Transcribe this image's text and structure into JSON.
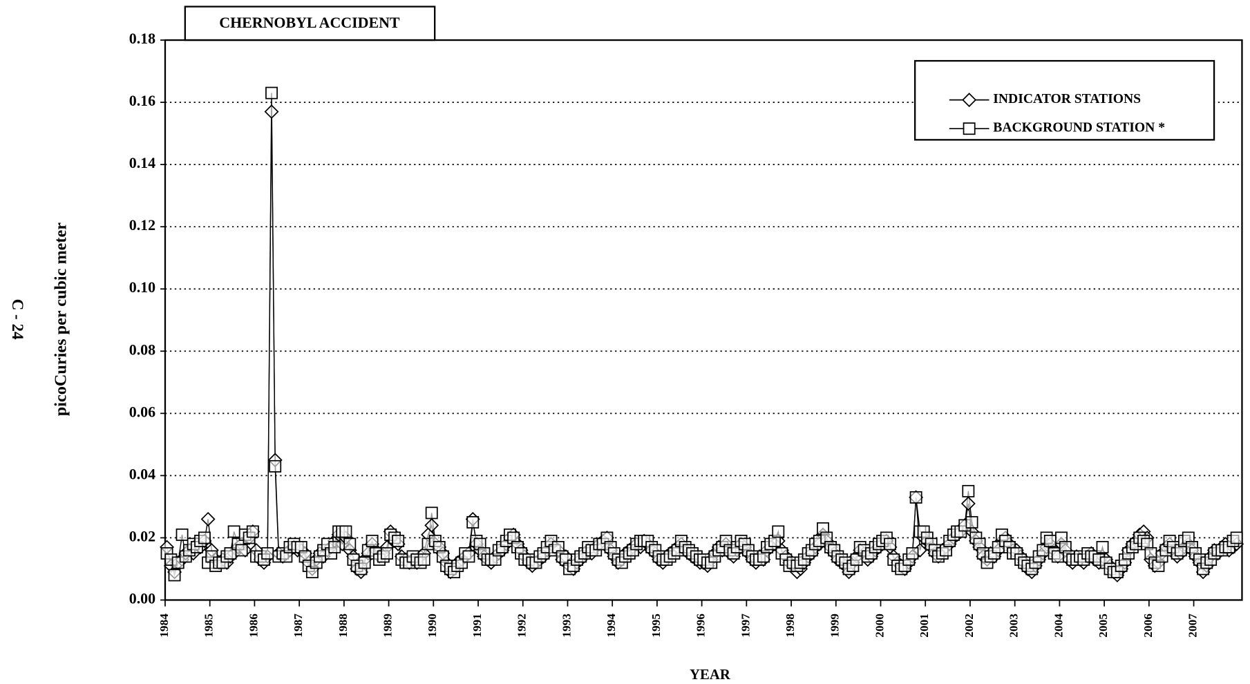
{
  "page_label": "C - 24",
  "chart_data": {
    "type": "line",
    "annotation": "CHERNOBYL ACCIDENT",
    "xlabel": "YEAR",
    "ylabel": "picoCuries per cubic meter",
    "xlim": [
      1984,
      2008.08
    ],
    "xticks": [
      1984,
      1985,
      1986,
      1987,
      1988,
      1989,
      1990,
      1991,
      1992,
      1993,
      1994,
      1995,
      1996,
      1997,
      1998,
      1999,
      2000,
      2001,
      2002,
      2003,
      2004,
      2005,
      2006,
      2007
    ],
    "ylim": [
      0,
      0.18
    ],
    "yticks": [
      {
        "value": 0,
        "label": "0.00"
      },
      {
        "value": 0.02,
        "label": "0.02"
      },
      {
        "value": 0.04,
        "label": "0.04"
      },
      {
        "value": 0.06,
        "label": "0.06"
      },
      {
        "value": 0.08,
        "label": "0.08"
      },
      {
        "value": 0.1,
        "label": "0.10"
      },
      {
        "value": 0.12,
        "label": "0.12"
      },
      {
        "value": 0.14,
        "label": "0.14"
      },
      {
        "value": 0.16,
        "label": "0.16"
      },
      {
        "value": 0.18,
        "label": "0.18"
      }
    ],
    "grid": true,
    "legend": "top-right",
    "x": [
      1984.04,
      1984.13,
      1984.21,
      1984.29,
      1984.38,
      1984.46,
      1984.54,
      1984.63,
      1984.71,
      1984.79,
      1984.88,
      1984.96,
      1985.04,
      1985.13,
      1985.21,
      1985.29,
      1985.38,
      1985.46,
      1985.54,
      1985.63,
      1985.71,
      1985.79,
      1985.88,
      1985.96,
      1986.04,
      1986.13,
      1986.21,
      1986.29,
      1986.38,
      1986.46,
      1986.54,
      1986.63,
      1986.71,
      1986.79,
      1986.88,
      1986.96,
      1987.04,
      1987.13,
      1987.21,
      1987.29,
      1987.38,
      1987.46,
      1987.54,
      1987.63,
      1987.71,
      1987.79,
      1987.88,
      1987.96,
      1988.04,
      1988.13,
      1988.21,
      1988.29,
      1988.38,
      1988.46,
      1988.54,
      1988.63,
      1988.71,
      1988.79,
      1988.88,
      1988.96,
      1989.04,
      1989.13,
      1989.21,
      1989.29,
      1989.38,
      1989.46,
      1989.54,
      1989.63,
      1989.71,
      1989.79,
      1989.88,
      1989.96,
      1990.04,
      1990.13,
      1990.21,
      1990.29,
      1990.38,
      1990.46,
      1990.54,
      1990.63,
      1990.71,
      1990.79,
      1990.88,
      1990.96,
      1991.04,
      1991.13,
      1991.21,
      1991.29,
      1991.38,
      1991.46,
      1991.54,
      1991.63,
      1991.71,
      1991.79,
      1991.88,
      1991.96,
      1992.04,
      1992.13,
      1992.21,
      1992.29,
      1992.38,
      1992.46,
      1992.54,
      1992.63,
      1992.71,
      1992.79,
      1992.88,
      1992.96,
      1993.04,
      1993.13,
      1993.21,
      1993.29,
      1993.38,
      1993.46,
      1993.54,
      1993.63,
      1993.71,
      1993.79,
      1993.88,
      1993.96,
      1994.04,
      1994.13,
      1994.21,
      1994.29,
      1994.38,
      1994.46,
      1994.54,
      1994.63,
      1994.71,
      1994.79,
      1994.88,
      1994.96,
      1995.04,
      1995.13,
      1995.21,
      1995.29,
      1995.38,
      1995.46,
      1995.54,
      1995.63,
      1995.71,
      1995.79,
      1995.88,
      1995.96,
      1996.04,
      1996.13,
      1996.21,
      1996.29,
      1996.38,
      1996.46,
      1996.54,
      1996.63,
      1996.71,
      1996.79,
      1996.88,
      1996.96,
      1997.04,
      1997.13,
      1997.21,
      1997.29,
      1997.38,
      1997.46,
      1997.54,
      1997.63,
      1997.71,
      1997.79,
      1997.88,
      1997.96,
      1998.04,
      1998.13,
      1998.21,
      1998.29,
      1998.38,
      1998.46,
      1998.54,
      1998.63,
      1998.71,
      1998.79,
      1998.88,
      1998.96,
      1999.04,
      1999.13,
      1999.21,
      1999.29,
      1999.38,
      1999.46,
      1999.54,
      1999.63,
      1999.71,
      1999.79,
      1999.88,
      1999.96,
      2000.04,
      2000.13,
      2000.21,
      2000.29,
      2000.38,
      2000.46,
      2000.54,
      2000.63,
      2000.71,
      2000.79,
      2000.88,
      2000.96,
      2001.04,
      2001.13,
      2001.21,
      2001.29,
      2001.38,
      2001.46,
      2001.54,
      2001.63,
      2001.71,
      2001.79,
      2001.88,
      2001.96,
      2002.04,
      2002.13,
      2002.21,
      2002.29,
      2002.38,
      2002.46,
      2002.54,
      2002.63,
      2002.71,
      2002.79,
      2002.88,
      2002.96,
      2003.04,
      2003.13,
      2003.21,
      2003.29,
      2003.38,
      2003.46,
      2003.54,
      2003.63,
      2003.71,
      2003.79,
      2003.88,
      2003.96,
      2004.04,
      2004.13,
      2004.21,
      2004.29,
      2004.38,
      2004.46,
      2004.54,
      2004.63,
      2004.71,
      2004.79,
      2004.88,
      2004.96,
      2005.04,
      2005.13,
      2005.21,
      2005.29,
      2005.38,
      2005.46,
      2005.54,
      2005.63,
      2005.71,
      2005.79,
      2005.88,
      2005.96,
      2006.04,
      2006.13,
      2006.21,
      2006.29,
      2006.38,
      2006.46,
      2006.54,
      2006.63,
      2006.71,
      2006.79,
      2006.88,
      2006.96,
      2007.04,
      2007.13,
      2007.21,
      2007.29,
      2007.38,
      2007.46,
      2007.54,
      2007.63,
      2007.71,
      2007.79,
      2007.88,
      2007.96
    ],
    "series": [
      {
        "name": "INDICATOR STATIONS",
        "color": "#000000",
        "marker": "diamond",
        "values": [
          0.017,
          0.011,
          0.009,
          0.012,
          0.013,
          0.015,
          0.016,
          0.015,
          0.018,
          0.017,
          0.019,
          0.026,
          0.016,
          0.013,
          0.012,
          0.013,
          0.012,
          0.014,
          0.015,
          0.017,
          0.018,
          0.016,
          0.02,
          0.022,
          0.016,
          0.013,
          0.012,
          0.014,
          0.157,
          0.045,
          0.015,
          0.014,
          0.015,
          0.016,
          0.017,
          0.016,
          0.016,
          0.015,
          0.012,
          0.01,
          0.013,
          0.015,
          0.014,
          0.016,
          0.017,
          0.019,
          0.021,
          0.018,
          0.02,
          0.016,
          0.014,
          0.01,
          0.009,
          0.013,
          0.015,
          0.018,
          0.016,
          0.014,
          0.015,
          0.017,
          0.022,
          0.019,
          0.018,
          0.014,
          0.013,
          0.012,
          0.013,
          0.012,
          0.014,
          0.015,
          0.021,
          0.024,
          0.018,
          0.017,
          0.015,
          0.012,
          0.009,
          0.01,
          0.012,
          0.013,
          0.014,
          0.015,
          0.026,
          0.018,
          0.016,
          0.014,
          0.013,
          0.012,
          0.014,
          0.015,
          0.016,
          0.018,
          0.02,
          0.021,
          0.018,
          0.016,
          0.014,
          0.012,
          0.011,
          0.012,
          0.013,
          0.014,
          0.016,
          0.018,
          0.017,
          0.016,
          0.013,
          0.014,
          0.011,
          0.01,
          0.012,
          0.013,
          0.015,
          0.016,
          0.015,
          0.017,
          0.018,
          0.019,
          0.02,
          0.016,
          0.014,
          0.012,
          0.013,
          0.015,
          0.016,
          0.017,
          0.018,
          0.017,
          0.019,
          0.018,
          0.016,
          0.015,
          0.013,
          0.012,
          0.014,
          0.015,
          0.016,
          0.017,
          0.018,
          0.016,
          0.015,
          0.014,
          0.013,
          0.012,
          0.012,
          0.011,
          0.013,
          0.015,
          0.017,
          0.016,
          0.018,
          0.015,
          0.014,
          0.016,
          0.018,
          0.017,
          0.015,
          0.013,
          0.012,
          0.014,
          0.013,
          0.016,
          0.017,
          0.018,
          0.019,
          0.016,
          0.014,
          0.012,
          0.011,
          0.009,
          0.01,
          0.012,
          0.014,
          0.015,
          0.017,
          0.018,
          0.021,
          0.019,
          0.017,
          0.015,
          0.013,
          0.012,
          0.011,
          0.009,
          0.012,
          0.014,
          0.016,
          0.015,
          0.013,
          0.014,
          0.016,
          0.017,
          0.018,
          0.019,
          0.017,
          0.014,
          0.012,
          0.011,
          0.01,
          0.012,
          0.014,
          0.033,
          0.016,
          0.02,
          0.019,
          0.017,
          0.015,
          0.014,
          0.016,
          0.017,
          0.018,
          0.02,
          0.021,
          0.022,
          0.024,
          0.031,
          0.022,
          0.019,
          0.017,
          0.014,
          0.013,
          0.015,
          0.014,
          0.016,
          0.019,
          0.02,
          0.018,
          0.016,
          0.016,
          0.014,
          0.012,
          0.01,
          0.009,
          0.011,
          0.013,
          0.015,
          0.017,
          0.018,
          0.016,
          0.014,
          0.018,
          0.016,
          0.013,
          0.012,
          0.014,
          0.013,
          0.012,
          0.014,
          0.015,
          0.013,
          0.012,
          0.014,
          0.013,
          0.011,
          0.009,
          0.008,
          0.01,
          0.012,
          0.016,
          0.018,
          0.019,
          0.021,
          0.022,
          0.02,
          0.013,
          0.011,
          0.012,
          0.015,
          0.017,
          0.018,
          0.016,
          0.014,
          0.015,
          0.017,
          0.018,
          0.016,
          0.014,
          0.012,
          0.009,
          0.011,
          0.014,
          0.016,
          0.015,
          0.017,
          0.018,
          0.016,
          0.017,
          0.018
        ]
      },
      {
        "name": "BACKGROUND STATION *",
        "color": "#000000",
        "marker": "square",
        "values": [
          0.015,
          0.013,
          0.008,
          0.012,
          0.021,
          0.014,
          0.016,
          0.018,
          0.017,
          0.019,
          0.02,
          0.012,
          0.014,
          0.011,
          0.012,
          0.012,
          0.014,
          0.015,
          0.022,
          0.018,
          0.016,
          0.021,
          0.02,
          0.022,
          0.014,
          0.014,
          0.013,
          0.015,
          0.163,
          0.043,
          0.014,
          0.015,
          0.014,
          0.017,
          0.018,
          0.017,
          0.017,
          0.014,
          0.011,
          0.009,
          0.012,
          0.014,
          0.016,
          0.018,
          0.015,
          0.017,
          0.022,
          0.022,
          0.022,
          0.018,
          0.013,
          0.011,
          0.01,
          0.012,
          0.016,
          0.019,
          0.015,
          0.013,
          0.014,
          0.015,
          0.021,
          0.02,
          0.019,
          0.013,
          0.012,
          0.012,
          0.014,
          0.013,
          0.012,
          0.013,
          0.018,
          0.028,
          0.019,
          0.017,
          0.014,
          0.011,
          0.01,
          0.009,
          0.011,
          0.012,
          0.015,
          0.014,
          0.025,
          0.019,
          0.018,
          0.015,
          0.013,
          0.013,
          0.013,
          0.016,
          0.017,
          0.019,
          0.021,
          0.02,
          0.017,
          0.015,
          0.013,
          0.013,
          0.012,
          0.012,
          0.014,
          0.015,
          0.017,
          0.019,
          0.016,
          0.017,
          0.014,
          0.013,
          0.01,
          0.011,
          0.013,
          0.014,
          0.015,
          0.017,
          0.016,
          0.016,
          0.018,
          0.018,
          0.02,
          0.017,
          0.015,
          0.013,
          0.012,
          0.014,
          0.015,
          0.016,
          0.018,
          0.019,
          0.019,
          0.019,
          0.017,
          0.016,
          0.014,
          0.013,
          0.013,
          0.014,
          0.015,
          0.016,
          0.019,
          0.017,
          0.016,
          0.015,
          0.014,
          0.013,
          0.013,
          0.012,
          0.012,
          0.014,
          0.016,
          0.017,
          0.019,
          0.016,
          0.015,
          0.017,
          0.019,
          0.018,
          0.016,
          0.014,
          0.013,
          0.013,
          0.014,
          0.017,
          0.018,
          0.019,
          0.022,
          0.015,
          0.013,
          0.011,
          0.012,
          0.011,
          0.012,
          0.013,
          0.015,
          0.016,
          0.018,
          0.019,
          0.023,
          0.02,
          0.017,
          0.016,
          0.014,
          0.013,
          0.012,
          0.01,
          0.011,
          0.013,
          0.017,
          0.016,
          0.014,
          0.015,
          0.017,
          0.018,
          0.019,
          0.02,
          0.018,
          0.013,
          0.011,
          0.01,
          0.011,
          0.013,
          0.015,
          0.033,
          0.022,
          0.022,
          0.02,
          0.018,
          0.016,
          0.014,
          0.015,
          0.016,
          0.019,
          0.021,
          0.022,
          0.022,
          0.024,
          0.035,
          0.025,
          0.02,
          0.018,
          0.015,
          0.012,
          0.014,
          0.015,
          0.017,
          0.021,
          0.019,
          0.017,
          0.015,
          0.015,
          0.013,
          0.012,
          0.011,
          0.01,
          0.012,
          0.014,
          0.016,
          0.02,
          0.019,
          0.015,
          0.014,
          0.02,
          0.017,
          0.014,
          0.013,
          0.013,
          0.014,
          0.013,
          0.015,
          0.014,
          0.014,
          0.013,
          0.017,
          0.012,
          0.01,
          0.009,
          0.009,
          0.011,
          0.013,
          0.015,
          0.017,
          0.018,
          0.02,
          0.019,
          0.018,
          0.015,
          0.012,
          0.011,
          0.014,
          0.016,
          0.019,
          0.017,
          0.015,
          0.016,
          0.019,
          0.02,
          0.017,
          0.015,
          0.013,
          0.01,
          0.012,
          0.013,
          0.015,
          0.016,
          0.016,
          0.017,
          0.017,
          0.019,
          0.02
        ]
      }
    ]
  }
}
